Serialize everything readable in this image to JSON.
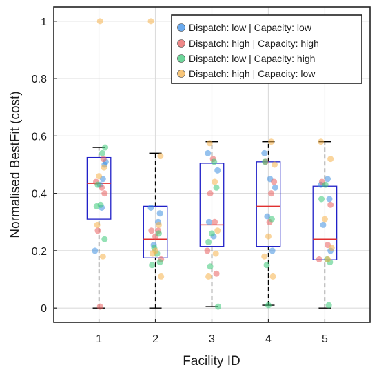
{
  "chart_data": {
    "type": "box",
    "xlabel": "Facility ID",
    "ylabel": "Normalised BestFit (cost)",
    "categories": [
      "1",
      "2",
      "3",
      "4",
      "5"
    ],
    "xlim": [
      0.2,
      5.8
    ],
    "ylim": [
      -0.05,
      1.05
    ],
    "yticks": [
      0,
      0.2,
      0.4,
      0.6,
      0.8,
      1
    ],
    "ytick_labels": [
      "0",
      "0.2",
      "0.4",
      "0.6",
      "0.8",
      "1"
    ],
    "grid": true,
    "legend_position": "top-right",
    "box_color": "#2020c8",
    "median_color": "#e03030",
    "whisker_color": "#000000",
    "boxes": [
      {
        "category": "1",
        "min": 0.0,
        "q1": 0.31,
        "median": 0.435,
        "q3": 0.525,
        "max": 0.56
      },
      {
        "category": "2",
        "min": 0.0,
        "q1": 0.175,
        "median": 0.24,
        "q3": 0.355,
        "max": 0.54
      },
      {
        "category": "3",
        "min": 0.005,
        "q1": 0.215,
        "median": 0.29,
        "q3": 0.505,
        "max": 0.58
      },
      {
        "category": "4",
        "min": 0.01,
        "q1": 0.215,
        "median": 0.355,
        "q3": 0.51,
        "max": 0.58
      },
      {
        "category": "5",
        "min": 0.0,
        "q1": 0.168,
        "median": 0.24,
        "q3": 0.425,
        "max": 0.58
      }
    ],
    "series": [
      {
        "name": "Dispatch: low | Capacity: low",
        "color": "#3f8fe0",
        "points": [
          [
            0.93,
            0.2
          ],
          [
            1.02,
            0.43
          ],
          [
            1.07,
            0.45
          ],
          [
            1.1,
            0.5
          ],
          [
            1.05,
            0.35
          ],
          [
            1.12,
            0.51
          ],
          [
            1.92,
            0.35
          ],
          [
            2.05,
            0.3
          ],
          [
            1.97,
            0.22
          ],
          [
            2.08,
            0.33
          ],
          [
            2.93,
            0.54
          ],
          [
            3.03,
            0.25
          ],
          [
            3.1,
            0.48
          ],
          [
            2.95,
            0.3
          ],
          [
            3.93,
            0.54
          ],
          [
            4.03,
            0.45
          ],
          [
            4.07,
            0.2
          ],
          [
            3.98,
            0.32
          ],
          [
            4.12,
            0.42
          ],
          [
            4.93,
            0.43
          ],
          [
            5.05,
            0.45
          ],
          [
            5.1,
            0.2
          ],
          [
            4.97,
            0.29
          ],
          [
            5.08,
            0.38
          ]
        ]
      },
      {
        "name": "Dispatch: high | Capacity: high",
        "color": "#ea6060",
        "points": [
          [
            0.95,
            0.44
          ],
          [
            1.05,
            0.42
          ],
          [
            1.1,
            0.4
          ],
          [
            0.98,
            0.27
          ],
          [
            1.08,
            0.52
          ],
          [
            1.02,
            0.005
          ],
          [
            1.93,
            0.27
          ],
          [
            2.05,
            0.27
          ],
          [
            2.0,
            0.25
          ],
          [
            2.1,
            0.17
          ],
          [
            2.97,
            0.4
          ],
          [
            3.05,
            0.3
          ],
          [
            3.08,
            0.12
          ],
          [
            2.92,
            0.2
          ],
          [
            3.02,
            0.52
          ],
          [
            3.95,
            0.51
          ],
          [
            4.05,
            0.4
          ],
          [
            4.02,
            0.3
          ],
          [
            4.1,
            0.44
          ],
          [
            4.95,
            0.44
          ],
          [
            5.05,
            0.22
          ],
          [
            5.1,
            0.36
          ],
          [
            4.9,
            0.17
          ]
        ]
      },
      {
        "name": "Dispatch: low | Capacity: high",
        "color": "#3cc878",
        "points": [
          [
            0.96,
            0.355
          ],
          [
            1.03,
            0.36
          ],
          [
            1.1,
            0.24
          ],
          [
            1.06,
            0.54
          ],
          [
            1.11,
            0.56
          ],
          [
            0.98,
            0.43
          ],
          [
            1.94,
            0.15
          ],
          [
            2.03,
            0.19
          ],
          [
            2.06,
            0.26
          ],
          [
            1.98,
            0.21
          ],
          [
            2.08,
            0.16
          ],
          [
            2.94,
            0.23
          ],
          [
            3.04,
            0.51
          ],
          [
            3.08,
            0.42
          ],
          [
            2.97,
            0.145
          ],
          [
            3.11,
            0.005
          ],
          [
            3.0,
            0.26
          ],
          [
            3.94,
            0.51
          ],
          [
            4.0,
            0.01
          ],
          [
            4.06,
            0.31
          ],
          [
            3.97,
            0.15
          ],
          [
            4.94,
            0.38
          ],
          [
            5.04,
            0.17
          ],
          [
            5.09,
            0.16
          ],
          [
            5.01,
            0.43
          ],
          [
            5.07,
            0.01
          ]
        ]
      },
      {
        "name": "Dispatch: high | Capacity: low",
        "color": "#f5b24c",
        "points": [
          [
            1.02,
            1.0
          ],
          [
            1.07,
            0.18
          ],
          [
            1.0,
            0.46
          ],
          [
            1.09,
            0.49
          ],
          [
            0.97,
            0.29
          ],
          [
            1.92,
            1.0
          ],
          [
            1.95,
            0.19
          ],
          [
            2.06,
            0.29
          ],
          [
            2.09,
            0.53
          ],
          [
            2.1,
            0.11
          ],
          [
            2.0,
            0.2
          ],
          [
            2.96,
            0.575
          ],
          [
            3.05,
            0.44
          ],
          [
            3.07,
            0.19
          ],
          [
            2.94,
            0.11
          ],
          [
            3.1,
            0.27
          ],
          [
            3.93,
            0.18
          ],
          [
            4.05,
            0.58
          ],
          [
            4.08,
            0.11
          ],
          [
            4.0,
            0.25
          ],
          [
            4.11,
            0.5
          ],
          [
            4.93,
            0.58
          ],
          [
            5.05,
            0.17
          ],
          [
            5.12,
            0.21
          ],
          [
            5.0,
            0.31
          ],
          [
            5.1,
            0.52
          ]
        ]
      }
    ]
  }
}
